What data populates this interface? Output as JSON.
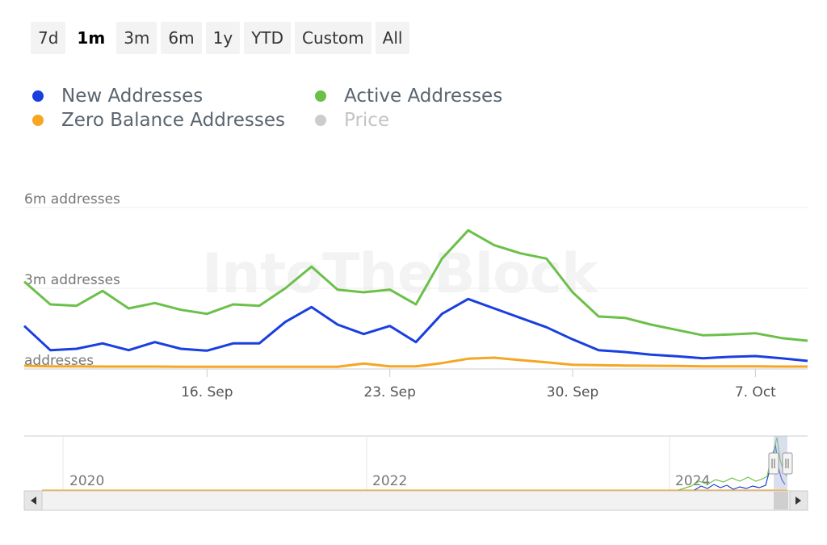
{
  "range_selector": {
    "buttons": [
      "7d",
      "1m",
      "3m",
      "6m",
      "1y",
      "YTD",
      "Custom",
      "All"
    ],
    "selected": "1m"
  },
  "legend": [
    {
      "name": "New Addresses",
      "color": "#1a3fe0",
      "visible": true
    },
    {
      "name": "Active Addresses",
      "color": "#6cc04a",
      "visible": true
    },
    {
      "name": "Zero Balance Addresses",
      "color": "#f5a623",
      "visible": true
    },
    {
      "name": "Price",
      "color": "#cccccc",
      "visible": false
    }
  ],
  "watermark": "IntoTheBlock",
  "chart_data": {
    "type": "line",
    "y_unit_labels": [
      "addresses",
      "3m addresses",
      "6m addresses"
    ],
    "y_ticks": [
      0,
      3,
      6
    ],
    "ylim": [
      0,
      6.3
    ],
    "x_tick_labels": [
      "16. Sep",
      "23. Sep",
      "30. Sep",
      "7. Oct"
    ],
    "x_tick_days": [
      16,
      23,
      30,
      37
    ],
    "xlim": [
      9,
      39
    ],
    "grid": true,
    "legend_position": "top",
    "series": [
      {
        "name": "New Addresses",
        "color": "#1a3fe0",
        "x": [
          9,
          10,
          11,
          12,
          13,
          14,
          15,
          16,
          17,
          18,
          19,
          20,
          21,
          22,
          23,
          24,
          25,
          26,
          27,
          28,
          29,
          30,
          31,
          32,
          33,
          34,
          35,
          36,
          37,
          38,
          39
        ],
        "values": [
          1.6,
          0.7,
          0.75,
          0.95,
          0.7,
          1.0,
          0.75,
          0.68,
          0.95,
          0.95,
          1.75,
          2.3,
          1.65,
          1.3,
          1.6,
          1.0,
          2.05,
          2.6,
          2.25,
          1.9,
          1.55,
          1.1,
          0.7,
          0.63,
          0.53,
          0.47,
          0.4,
          0.45,
          0.48,
          0.4,
          0.3
        ]
      },
      {
        "name": "Active Addresses",
        "color": "#6cc04a",
        "x": [
          9,
          10,
          11,
          12,
          13,
          14,
          15,
          16,
          17,
          18,
          19,
          20,
          21,
          22,
          23,
          24,
          25,
          26,
          27,
          28,
          29,
          30,
          31,
          32,
          33,
          34,
          35,
          36,
          37,
          38,
          39
        ],
        "values": [
          3.25,
          2.4,
          2.35,
          2.9,
          2.25,
          2.45,
          2.2,
          2.05,
          2.4,
          2.35,
          3.0,
          3.8,
          2.95,
          2.85,
          2.95,
          2.4,
          4.1,
          5.15,
          4.6,
          4.3,
          4.1,
          2.85,
          1.95,
          1.9,
          1.65,
          1.45,
          1.25,
          1.28,
          1.33,
          1.15,
          1.05
        ]
      },
      {
        "name": "Zero Balance Addresses",
        "color": "#f5a623",
        "x": [
          9,
          10,
          11,
          12,
          13,
          14,
          15,
          16,
          17,
          18,
          19,
          20,
          21,
          22,
          23,
          24,
          25,
          26,
          27,
          28,
          29,
          30,
          31,
          32,
          33,
          34,
          35,
          36,
          37,
          38,
          39
        ],
        "values": [
          0.12,
          0.1,
          0.1,
          0.09,
          0.09,
          0.09,
          0.08,
          0.08,
          0.08,
          0.08,
          0.08,
          0.08,
          0.08,
          0.2,
          0.1,
          0.1,
          0.22,
          0.38,
          0.42,
          0.33,
          0.25,
          0.16,
          0.14,
          0.13,
          0.12,
          0.11,
          0.1,
          0.1,
          0.1,
          0.09,
          0.09
        ]
      }
    ],
    "navigator": {
      "year_labels": [
        "2020",
        "2022",
        "2024"
      ],
      "series_colors": [
        "#1a3fe0",
        "#6cc04a",
        "#f5a623"
      ]
    }
  }
}
